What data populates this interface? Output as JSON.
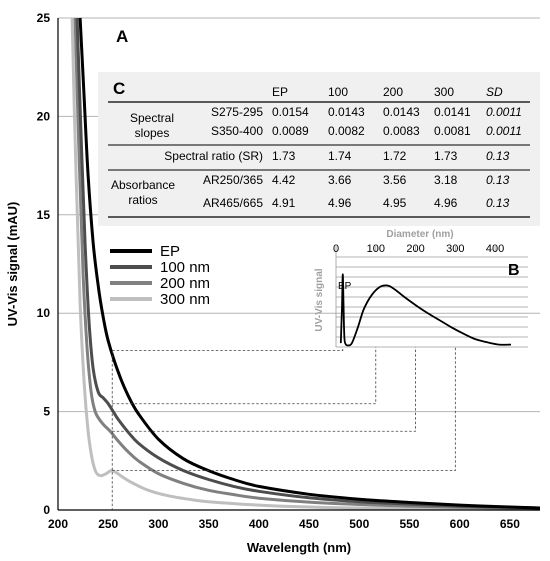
{
  "chart_data": [
    {
      "panel": "A",
      "type": "line",
      "xlabel": "Wavelength (nm)",
      "ylabel": "UV-Vis signal (mAU)",
      "xlim": [
        200,
        680
      ],
      "ylim": [
        0,
        25
      ],
      "xticks": [
        200,
        250,
        300,
        350,
        400,
        450,
        500,
        550,
        600,
        650
      ],
      "yticks": [
        0,
        5,
        10,
        15,
        20,
        25
      ],
      "grid": "horizontal",
      "legend_position": "middle-left",
      "series": [
        {
          "name": "EP",
          "color": "#000000",
          "x": [
            222,
            226,
            230,
            235,
            240,
            245,
            250,
            260,
            270,
            280,
            300,
            325,
            350,
            375,
            400,
            450,
            500,
            550,
            600,
            650,
            680
          ],
          "y": [
            25,
            21.0,
            17.0,
            13.6,
            11.4,
            9.8,
            8.6,
            7.0,
            5.8,
            4.9,
            3.6,
            2.6,
            2.0,
            1.55,
            1.2,
            0.8,
            0.55,
            0.38,
            0.25,
            0.15,
            0.1
          ]
        },
        {
          "name": "100 nm",
          "color": "#4d4d4d",
          "x": [
            219,
            223,
            227,
            231,
            235,
            240,
            245,
            250,
            255,
            260,
            270,
            280,
            300,
            325,
            350,
            375,
            400,
            450,
            500,
            550,
            600,
            650,
            680
          ],
          "y": [
            25,
            19.0,
            13.5,
            9.5,
            7.2,
            6.0,
            5.7,
            5.4,
            5.0,
            4.6,
            3.95,
            3.4,
            2.65,
            2.0,
            1.55,
            1.2,
            0.95,
            0.62,
            0.42,
            0.3,
            0.2,
            0.13,
            0.1
          ]
        },
        {
          "name": "200 nm",
          "color": "#808080",
          "x": [
            217,
            221,
            225,
            229,
            233,
            237,
            242,
            247,
            252,
            260,
            270,
            280,
            300,
            325,
            350,
            375,
            400,
            450,
            500,
            550,
            600,
            650,
            680
          ],
          "y": [
            25,
            18.0,
            12.0,
            8.2,
            6.0,
            5.0,
            4.55,
            4.25,
            4.0,
            3.5,
            2.95,
            2.5,
            1.85,
            1.35,
            1.0,
            0.78,
            0.6,
            0.4,
            0.28,
            0.2,
            0.14,
            0.1,
            0.08
          ]
        },
        {
          "name": "300 nm",
          "color": "#bfbfbf",
          "x": [
            214,
            218,
            222,
            226,
            230,
            234,
            238,
            243,
            248,
            253,
            258,
            265,
            275,
            290,
            310,
            330,
            350,
            400,
            450,
            500,
            550,
            600,
            680
          ],
          "y": [
            25,
            17.0,
            10.5,
            6.5,
            4.0,
            2.6,
            1.9,
            1.75,
            1.85,
            2.0,
            1.9,
            1.65,
            1.35,
            1.0,
            0.72,
            0.55,
            0.42,
            0.25,
            0.15,
            0.1,
            0.07,
            0.05,
            0.03
          ]
        }
      ],
      "markers": [
        {
          "series": "EP",
          "wavelength": 254,
          "value": 8.1
        },
        {
          "series": "100 nm",
          "wavelength": 254,
          "value": 5.4
        },
        {
          "series": "200 nm",
          "wavelength": 254,
          "value": 4.0
        },
        {
          "series": "300 nm",
          "wavelength": 254,
          "value": 2.0
        }
      ]
    },
    {
      "panel": "B",
      "type": "line",
      "title": "Diameter (nm)",
      "ylabel": "UV-Vis signal",
      "xlim": [
        0,
        450
      ],
      "xticks": [
        0,
        100,
        200,
        300,
        400
      ],
      "peak_label": "EP",
      "x": [
        12,
        15,
        17,
        19,
        21,
        24,
        30,
        40,
        55,
        70,
        90,
        110,
        125,
        135,
        150,
        170,
        200,
        230,
        260,
        290,
        320,
        350,
        380,
        410,
        440
      ],
      "y": [
        0.05,
        0.5,
        0.92,
        0.5,
        0.12,
        0.04,
        0.02,
        0.05,
        0.25,
        0.48,
        0.66,
        0.76,
        0.78,
        0.77,
        0.72,
        0.64,
        0.53,
        0.43,
        0.34,
        0.25,
        0.17,
        0.1,
        0.06,
        0.03,
        0.03
      ]
    },
    {
      "panel": "C",
      "type": "table",
      "columns": [
        "",
        "",
        "EP",
        "100",
        "200",
        "300",
        "SD"
      ],
      "rows": [
        {
          "group": "Spectral slopes",
          "label": "S275-295",
          "values": [
            "0.0154",
            "0.0143",
            "0.0143",
            "0.0141",
            "0.0011"
          ]
        },
        {
          "group": "",
          "label": "S350-400",
          "values": [
            "0.0089",
            "0.0082",
            "0.0083",
            "0.0081",
            "0.0011"
          ]
        },
        {
          "group": "",
          "label": "Spectral ratio (SR)",
          "values": [
            "1.73",
            "1.74",
            "1.72",
            "1.73",
            "0.13"
          ]
        },
        {
          "group": "Absorbance ratios",
          "label": "AR250/365",
          "values": [
            "4.42",
            "3.66",
            "3.56",
            "3.18",
            "0.13"
          ]
        },
        {
          "group": "",
          "label": "AR465/665",
          "values": [
            "4.91",
            "4.96",
            "4.95",
            "4.96",
            "0.13"
          ]
        }
      ]
    }
  ],
  "panel_labels": {
    "a": "A",
    "b": "B",
    "c": "C"
  },
  "table_text": {
    "spectral_slopes_line1": "Spectral",
    "spectral_slopes_line2": "slopes",
    "absorbance_line1": "Absorbance",
    "absorbance_line2": "ratios"
  },
  "colors": {
    "ep": "#000000",
    "s100": "#4d4d4d",
    "s200": "#808080",
    "s300": "#bfbfbf",
    "table_bg": "#f0f0f0"
  }
}
